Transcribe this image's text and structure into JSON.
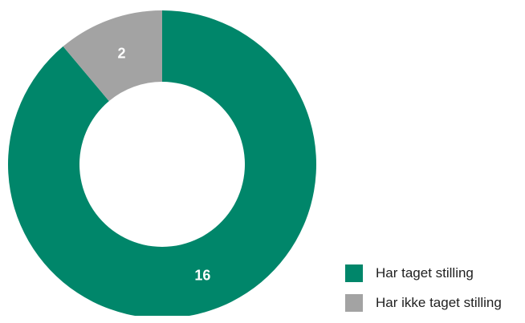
{
  "chart_data": {
    "type": "pie",
    "donut": true,
    "title": "",
    "series": [
      {
        "name": "Har taget stilling",
        "value": 16,
        "color": "#00866a"
      },
      {
        "name": "Har ikke taget stilling",
        "value": 2,
        "color": "#a3a3a3"
      }
    ],
    "data_labels": [
      "16",
      "2"
    ],
    "legend_position": "bottom-right"
  }
}
